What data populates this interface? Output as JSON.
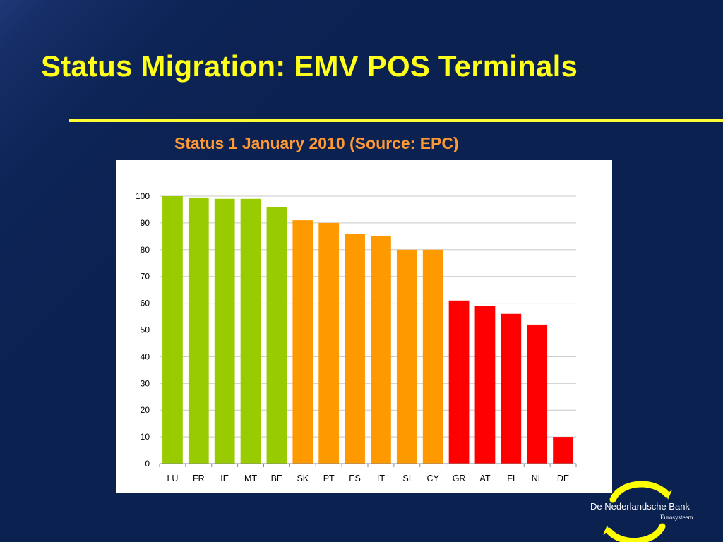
{
  "slide": {
    "title": "Status Migration: EMV POS Terminals",
    "subtitle": "Status 1 January 2010 (Source: EPC)"
  },
  "chart_data": {
    "type": "bar",
    "title": "Status 1 January 2010 (Source: EPC)",
    "xlabel": "",
    "ylabel": "",
    "ylim": [
      0,
      100
    ],
    "yticks": [
      0,
      10,
      20,
      30,
      40,
      50,
      60,
      70,
      80,
      90,
      100
    ],
    "grid": true,
    "legend": "none",
    "categories": [
      "LU",
      "FR",
      "IE",
      "MT",
      "BE",
      "SK",
      "PT",
      "ES",
      "IT",
      "SI",
      "CY",
      "GR",
      "AT",
      "FI",
      "NL",
      "DE"
    ],
    "values": [
      100,
      99.5,
      99,
      99,
      96,
      91,
      90,
      86,
      85,
      80,
      80,
      61,
      59,
      56,
      52,
      10
    ],
    "bar_colors": [
      "#99cc00",
      "#99cc00",
      "#99cc00",
      "#99cc00",
      "#99cc00",
      "#ff9900",
      "#ff9900",
      "#ff9900",
      "#ff9900",
      "#ff9900",
      "#ff9900",
      "#ff0000",
      "#ff0000",
      "#ff0000",
      "#ff0000",
      "#ff0000"
    ]
  },
  "logo": {
    "name": "De Nederlandsche Bank",
    "sub": "Eurosysteem",
    "color": "#ffff00"
  },
  "colors": {
    "background": "#0b2150",
    "title": "#ffff1a",
    "subtitle": "#ff9933"
  }
}
